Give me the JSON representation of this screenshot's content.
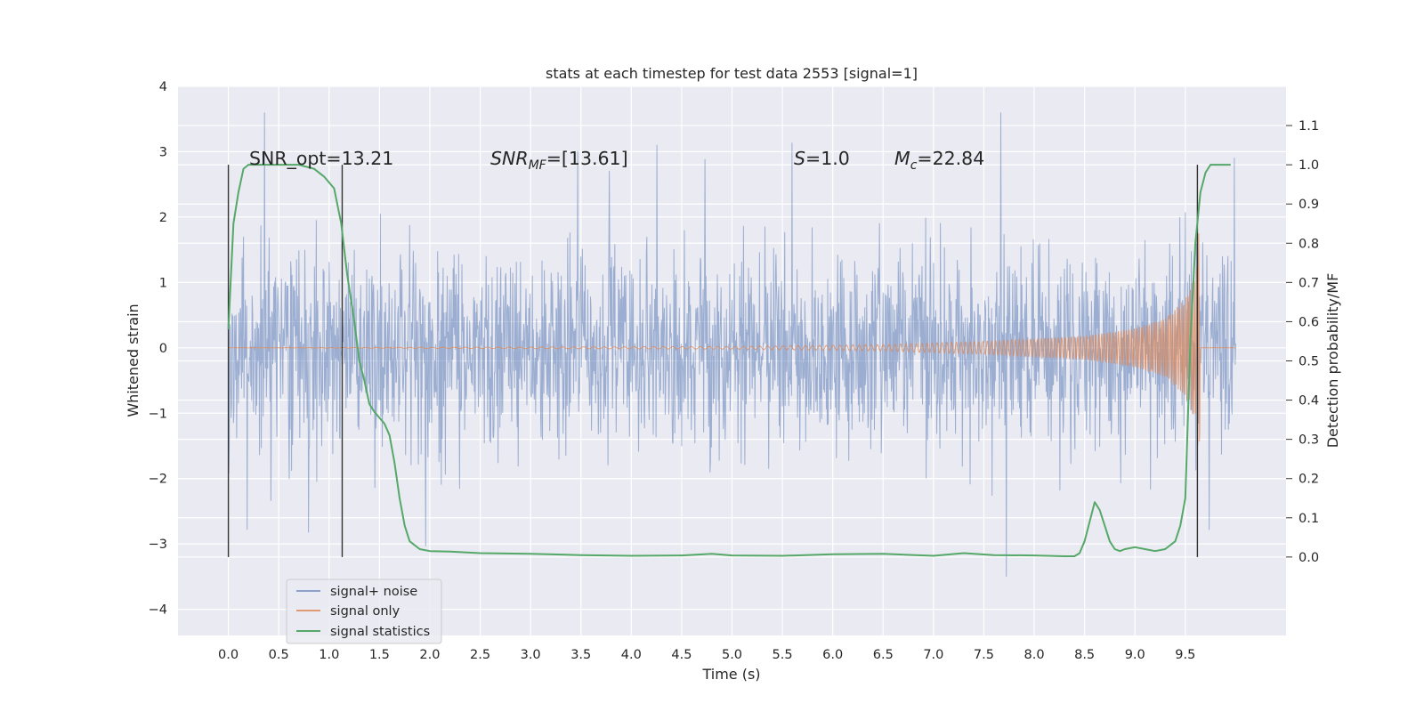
{
  "chart_data": {
    "type": "line",
    "title": "stats at each timestep for test data 2553 [signal=1]",
    "xlabel": "Time (s)",
    "ylabel": "Whitened strain",
    "y2label": "Detection probability/MF",
    "xlim": [
      -0.5,
      10.5
    ],
    "ylim": [
      -4.4,
      4.0
    ],
    "y2lim": [
      -0.2,
      1.2
    ],
    "xticks": [
      "0.0",
      "0.5",
      "1.0",
      "1.5",
      "2.0",
      "2.5",
      "3.0",
      "3.5",
      "4.0",
      "4.5",
      "5.0",
      "5.5",
      "6.0",
      "6.5",
      "7.0",
      "7.5",
      "8.0",
      "8.5",
      "9.0",
      "9.5"
    ],
    "yticks": [
      "4",
      "3",
      "2",
      "1",
      "0",
      "−1",
      "−2",
      "−3",
      "−4"
    ],
    "y2ticks": [
      "1.1",
      "1.0",
      "0.9",
      "0.8",
      "0.7",
      "0.6",
      "0.5",
      "0.4",
      "0.3",
      "0.2",
      "0.1",
      "0.0"
    ],
    "grid": true,
    "legend_position": "lower-left",
    "colors": {
      "background": "#eaeaf2",
      "grid": "#ffffff",
      "noise": "#4c72b0",
      "signal": "#dd8452",
      "statistics": "#55a868",
      "markers": "#333333"
    },
    "annotations": {
      "snr_opt": "SNR_opt=13.21",
      "snr_mf_base": "SNR",
      "snr_mf_sub": "MF",
      "snr_mf_value": "=[13.61]",
      "s_base": "S",
      "s_value": "=1.0",
      "mc_base": "M",
      "mc_sub": "c",
      "mc_value": "=22.84"
    },
    "legend": [
      "signal+ noise",
      "signal only",
      "signal statistics"
    ],
    "series": [
      {
        "name": "signal+ noise",
        "t_range": [
          0.0,
          10.0
        ],
        "core_amplitude": 1.8,
        "peak_amplitude": 3.5
      },
      {
        "name": "signal only",
        "chirp_envelope_t": [
          0.0,
          5.0,
          6.5,
          7.5,
          8.5,
          9.0,
          9.3,
          9.5,
          9.6,
          9.64,
          9.65
        ],
        "chirp_envelope_a": [
          0.0,
          0.02,
          0.05,
          0.1,
          0.18,
          0.3,
          0.45,
          0.75,
          1.1,
          2.0,
          0.0
        ]
      },
      {
        "name": "signal statistics",
        "x": [
          0.0,
          0.05,
          0.1,
          0.15,
          0.2,
          0.3,
          0.5,
          0.7,
          0.85,
          0.95,
          1.05,
          1.12,
          1.18,
          1.25,
          1.3,
          1.35,
          1.4,
          1.45,
          1.55,
          1.6,
          1.65,
          1.7,
          1.75,
          1.8,
          1.9,
          2.0,
          2.2,
          2.5,
          3.0,
          3.5,
          4.0,
          4.5,
          4.8,
          5.0,
          5.5,
          6.0,
          6.5,
          7.0,
          7.3,
          7.6,
          8.0,
          8.3,
          8.4,
          8.45,
          8.5,
          8.55,
          8.6,
          8.65,
          8.7,
          8.75,
          8.8,
          8.85,
          8.9,
          9.0,
          9.1,
          9.2,
          9.3,
          9.4,
          9.45,
          9.5,
          9.55,
          9.6,
          9.65,
          9.7,
          9.75,
          9.8,
          9.9,
          9.95
        ],
        "y": [
          0.58,
          0.85,
          0.93,
          0.99,
          1.0,
          1.0,
          1.0,
          1.0,
          0.99,
          0.97,
          0.94,
          0.85,
          0.72,
          0.6,
          0.5,
          0.45,
          0.39,
          0.37,
          0.34,
          0.31,
          0.24,
          0.15,
          0.08,
          0.04,
          0.02,
          0.015,
          0.014,
          0.01,
          0.008,
          0.005,
          0.003,
          0.004,
          0.008,
          0.004,
          0.003,
          0.007,
          0.008,
          0.003,
          0.01,
          0.005,
          0.004,
          0.002,
          0.002,
          0.01,
          0.04,
          0.09,
          0.14,
          0.12,
          0.08,
          0.04,
          0.02,
          0.015,
          0.02,
          0.025,
          0.02,
          0.015,
          0.02,
          0.04,
          0.08,
          0.15,
          0.55,
          0.8,
          0.93,
          0.98,
          1.0,
          1.0,
          1.0,
          1.0
        ]
      }
    ],
    "vertical_markers": [
      0.0,
      1.13,
      9.62
    ]
  }
}
